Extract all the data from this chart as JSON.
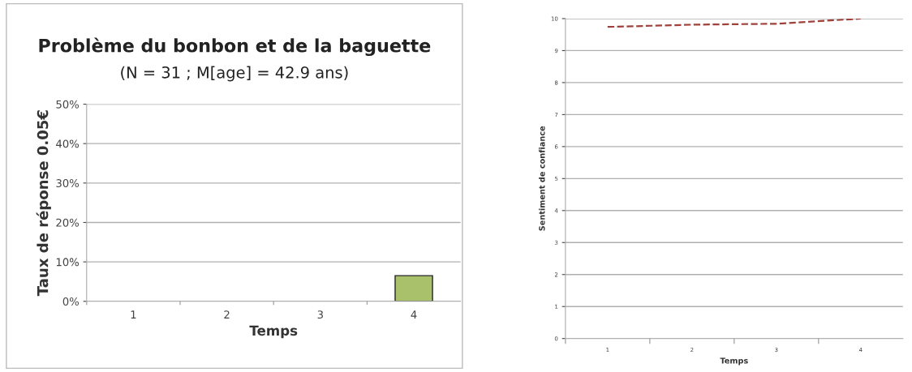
{
  "chart_data": [
    {
      "type": "bar",
      "title": "Problème du bonbon et de la baguette",
      "subtitle": "(N = 31 ; M[age] = 42.9 ans)",
      "xlabel": "Temps",
      "ylabel": "Taux de réponse 0.05€",
      "categories": [
        "1",
        "2",
        "3",
        "4"
      ],
      "values": [
        0,
        0,
        0,
        6.5
      ],
      "color": "#a9c16b",
      "ylim": [
        0,
        50
      ],
      "yticks": [
        {
          "value": 0,
          "label": "0%"
        },
        {
          "value": 10,
          "label": "10%"
        },
        {
          "value": 20,
          "label": "20%"
        },
        {
          "value": 30,
          "label": "30%"
        },
        {
          "value": 40,
          "label": "40%"
        },
        {
          "value": 50,
          "label": "50%"
        }
      ],
      "grid": "y"
    },
    {
      "type": "line",
      "xlabel": "Temps",
      "ylabel": "Sentiment de confiance",
      "categories": [
        "1",
        "2",
        "3",
        "4"
      ],
      "values": [
        9.74,
        9.81,
        9.84,
        10.0
      ],
      "color": "#a0403a",
      "line_style": "dashed",
      "marker": "none",
      "ylim": [
        0,
        10
      ],
      "yticks": [
        0,
        1,
        2,
        3,
        4,
        5,
        6,
        7,
        8,
        9,
        10
      ],
      "grid": "y"
    }
  ]
}
